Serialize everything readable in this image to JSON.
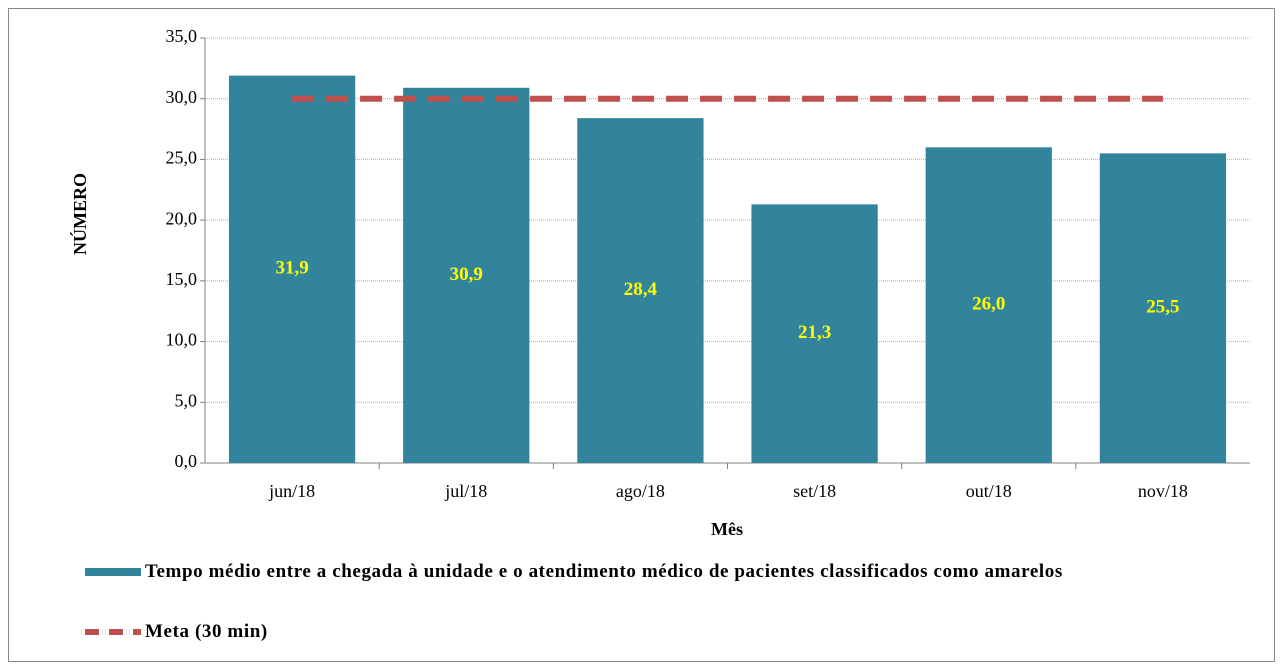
{
  "chart_data": {
    "type": "bar",
    "x_label": "Mês",
    "y_label": "NÚMERO",
    "categories": [
      "jun/18",
      "jul/18",
      "ago/18",
      "set/18",
      "out/18",
      "nov/18"
    ],
    "series": [
      {
        "name": "Tempo médio entre a chegada à unidade e o atendimento médico de pacientes classificados como amarelos",
        "type": "bar",
        "color": "#31849b",
        "values": [
          31.9,
          30.9,
          28.4,
          21.3,
          26.0,
          25.5
        ],
        "value_labels": [
          "31,9",
          "30,9",
          "28,4",
          "21,3",
          "26,0",
          "25,5"
        ],
        "label_color": "#ffff00"
      },
      {
        "name": "Meta (30 min)",
        "type": "line",
        "dashed": true,
        "color": "#c0504d",
        "values": [
          30,
          30,
          30,
          30,
          30,
          30
        ]
      }
    ],
    "ylim": [
      0,
      35
    ],
    "yticks": [
      {
        "value": 0,
        "label": "0,0"
      },
      {
        "value": 5,
        "label": "5,0"
      },
      {
        "value": 10,
        "label": "10,0"
      },
      {
        "value": 15,
        "label": "15,0"
      },
      {
        "value": 20,
        "label": "20,0"
      },
      {
        "value": 25,
        "label": "25,0"
      },
      {
        "value": 30,
        "label": "30,0"
      },
      {
        "value": 35,
        "label": "35,0"
      }
    ],
    "grid": true
  }
}
